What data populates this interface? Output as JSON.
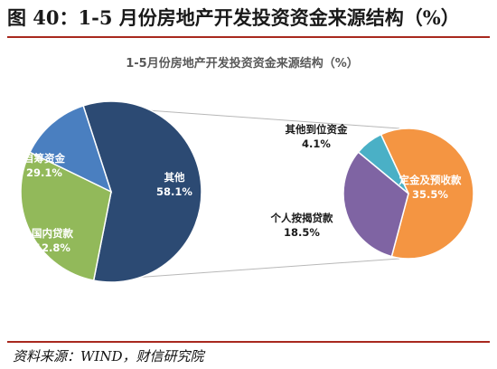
{
  "figure_title": "图 40：1-5 月份房地产开发投资资金来源结构（%）",
  "source": "资料来源：WIND，财信研究院",
  "colors": {
    "other": "#2c4a73",
    "self_raised": "#92b95a",
    "domestic_loan": "#4a7fc0",
    "deposits_advance": "#f49542",
    "mortgage": "#7f64a3",
    "other_funds": "#4ab0c6",
    "title_rule": "#a8281e",
    "connector": "#b8b8b8"
  },
  "chart_data": {
    "type": "pie",
    "subtype": "pie-of-pie",
    "title": "1-5月份房地产开发投资资金来源结构（%）",
    "main_pie": {
      "slices": [
        {
          "name": "其他",
          "value": 58.1,
          "label": "58.1%",
          "color_key": "other"
        },
        {
          "name": "自筹资金",
          "value": 29.1,
          "label": "29.1%",
          "color_key": "self_raised"
        },
        {
          "name": "国内贷款",
          "value": 12.8,
          "label": "12.8%",
          "color_key": "domestic_loan"
        }
      ]
    },
    "secondary_pie": {
      "slices": [
        {
          "name": "定金及预收款",
          "value": 35.5,
          "label": "35.5%",
          "color_key": "deposits_advance"
        },
        {
          "name": "个人按揭贷款",
          "value": 18.5,
          "label": "18.5%",
          "color_key": "mortgage"
        },
        {
          "name": "其他到位资金",
          "value": 4.1,
          "label": "4.1%",
          "color_key": "other_funds"
        }
      ]
    }
  }
}
